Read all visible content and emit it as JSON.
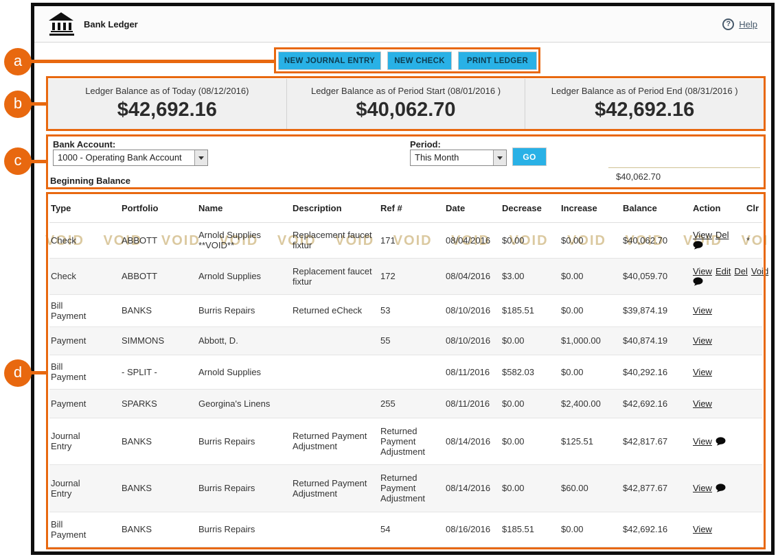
{
  "annotations": {
    "a": "a",
    "b": "b",
    "c": "c",
    "d": "d"
  },
  "header": {
    "title": "Bank Ledger",
    "help_label": "Help",
    "help_icon_glyph": "?"
  },
  "toolbar": {
    "buttons": [
      "NEW JOURNAL ENTRY",
      "NEW CHECK",
      "PRINT LEDGER"
    ]
  },
  "balances": [
    {
      "label": "Ledger Balance as of Today (08/12/2016)",
      "amount": "$42,692.16"
    },
    {
      "label": "Ledger Balance as of Period Start (08/01/2016 )",
      "amount": "$40,062.70"
    },
    {
      "label": "Ledger Balance as of Period End (08/31/2016 )",
      "amount": "$42,692.16"
    }
  ],
  "filters": {
    "bank_account_label": "Bank Account:",
    "bank_account_value": "1000 - Operating Bank Account",
    "period_label": "Period:",
    "period_value": "This Month",
    "go_label": "GO",
    "beginning_balance_label": "Beginning Balance",
    "beginning_balance_value": "$40,062.70"
  },
  "table": {
    "columns": [
      "Type",
      "Portfolio",
      "Name",
      "Description",
      "Ref #",
      "Date",
      "Decrease",
      "Increase",
      "Balance",
      "Action",
      "Clr"
    ],
    "void_watermark": "VOID",
    "rows": [
      {
        "type": "Check",
        "portfolio": "ABBOTT",
        "name": "Arnold Supplies **VOID**",
        "description": "Replacement faucet fixtur",
        "ref": "171",
        "date": "08/04/2016",
        "decrease": "$0.00",
        "increase": "$0.00",
        "balance": "$40,062.70",
        "actions": [
          "View",
          "Del"
        ],
        "comment": true,
        "clr": "*",
        "voided": true
      },
      {
        "type": "Check",
        "portfolio": "ABBOTT",
        "name": "Arnold Supplies",
        "description": "Replacement faucet fixtur",
        "ref": "172",
        "date": "08/04/2016",
        "decrease": "$3.00",
        "increase": "$0.00",
        "balance": "$40,059.70",
        "actions": [
          "View",
          "Edit",
          "Del",
          "Void"
        ],
        "comment": true,
        "clr": ""
      },
      {
        "type": "Bill Payment",
        "portfolio": "BANKS",
        "name": "Burris Repairs",
        "description": "Returned eCheck",
        "ref": "53",
        "date": "08/10/2016",
        "decrease": "$185.51",
        "increase": "$0.00",
        "balance": "$39,874.19",
        "actions": [
          "View"
        ],
        "comment": false,
        "clr": ""
      },
      {
        "type": "Payment",
        "portfolio": "SIMMONS",
        "name": "Abbott, D.",
        "description": "",
        "ref": "55",
        "date": "08/10/2016",
        "decrease": "$0.00",
        "increase": "$1,000.00",
        "balance": "$40,874.19",
        "actions": [
          "View"
        ],
        "comment": false,
        "clr": ""
      },
      {
        "type": "Bill Payment",
        "portfolio": "- SPLIT -",
        "name": "Arnold Supplies",
        "description": "",
        "ref": "",
        "date": "08/11/2016",
        "decrease": "$582.03",
        "increase": "$0.00",
        "balance": "$40,292.16",
        "actions": [
          "View"
        ],
        "comment": false,
        "clr": ""
      },
      {
        "type": "Payment",
        "portfolio": "SPARKS",
        "name": "Georgina's Linens",
        "description": "",
        "ref": "255",
        "date": "08/11/2016",
        "decrease": "$0.00",
        "increase": "$2,400.00",
        "balance": "$42,692.16",
        "actions": [
          "View"
        ],
        "comment": false,
        "clr": ""
      },
      {
        "type": "Journal Entry",
        "portfolio": "BANKS",
        "name": "Burris Repairs",
        "description": "Returned Payment Adjustment",
        "ref": "Returned Payment Adjustment",
        "date": "08/14/2016",
        "decrease": "$0.00",
        "increase": "$125.51",
        "balance": "$42,817.67",
        "actions": [
          "View"
        ],
        "comment": true,
        "clr": ""
      },
      {
        "type": "Journal Entry",
        "portfolio": "BANKS",
        "name": "Burris Repairs",
        "description": "Returned Payment Adjustment",
        "ref": "Returned Payment Adjustment",
        "date": "08/14/2016",
        "decrease": "$0.00",
        "increase": "$60.00",
        "balance": "$42,877.67",
        "actions": [
          "View"
        ],
        "comment": true,
        "clr": ""
      },
      {
        "type": "Bill Payment",
        "portfolio": "BANKS",
        "name": "Burris Repairs",
        "description": "",
        "ref": "54",
        "date": "08/16/2016",
        "decrease": "$185.51",
        "increase": "$0.00",
        "balance": "$42,692.16",
        "actions": [
          "View"
        ],
        "comment": false,
        "clr": ""
      }
    ]
  }
}
